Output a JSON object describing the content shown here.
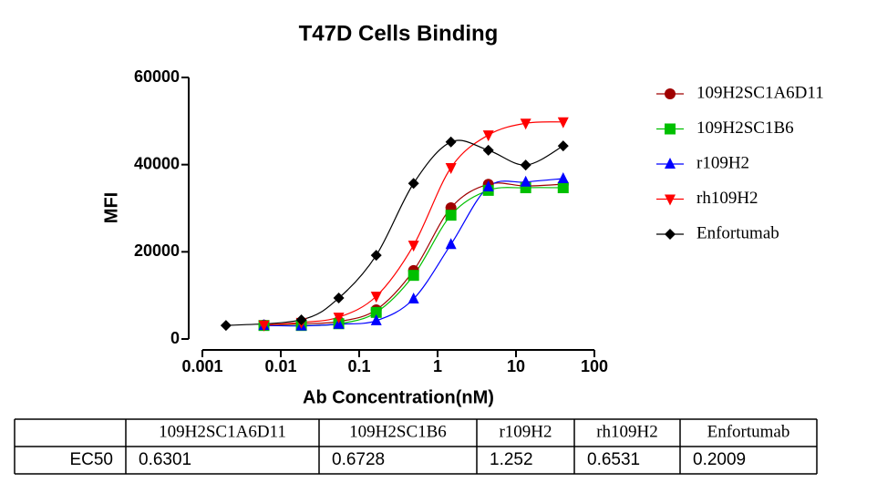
{
  "chart_data": {
    "type": "scatter",
    "title": "T47D  Cells Binding",
    "xlabel": "Ab Concentration(nM)",
    "ylabel": "MFI",
    "xscale": "log",
    "xlim": [
      0.001,
      100
    ],
    "xticks": [
      0.001,
      0.01,
      0.1,
      1,
      10,
      100
    ],
    "ylim": [
      0,
      60000
    ],
    "yticks": [
      0,
      20000,
      40000,
      60000
    ],
    "legend": "right",
    "series": [
      {
        "name": "109H2SC1A6D11",
        "color": "#a00000",
        "marker": "circle",
        "x": [
          0.0061,
          0.0183,
          0.0549,
          0.165,
          0.494,
          1.48,
          4.44,
          13.3,
          40
        ],
        "values": [
          3200,
          3500,
          4000,
          6700,
          15700,
          30100,
          35500,
          35100,
          35500
        ]
      },
      {
        "name": "109H2SC1B6",
        "color": "#00c000",
        "marker": "square",
        "x": [
          0.0061,
          0.0183,
          0.0549,
          0.165,
          0.494,
          1.48,
          4.44,
          13.3,
          40
        ],
        "values": [
          3100,
          3100,
          3500,
          6100,
          14600,
          28400,
          34100,
          34700,
          34700
        ]
      },
      {
        "name": "r109H2",
        "color": "#0000ff",
        "marker": "triangle-up",
        "x": [
          0.0061,
          0.0183,
          0.0549,
          0.165,
          0.494,
          1.48,
          4.44,
          13.3,
          40
        ],
        "values": [
          3100,
          3000,
          3400,
          4200,
          9200,
          21700,
          34900,
          36000,
          36800
        ]
      },
      {
        "name": "rh109H2",
        "color": "#ff0000",
        "marker": "triangle-down",
        "x": [
          0.0061,
          0.0183,
          0.0549,
          0.165,
          0.494,
          1.48,
          4.44,
          13.3,
          40
        ],
        "values": [
          3200,
          3800,
          5000,
          9800,
          21500,
          39300,
          46800,
          49500,
          49800
        ]
      },
      {
        "name": "Enfortumab",
        "color": "#000000",
        "marker": "diamond",
        "x": [
          0.002,
          0.0183,
          0.0549,
          0.165,
          0.494,
          1.48,
          4.44,
          13.3,
          40
        ],
        "values": [
          3100,
          4400,
          9400,
          19200,
          35700,
          45200,
          43300,
          39900,
          44300
        ]
      }
    ]
  },
  "table": {
    "header": [
      "109H2SC1A6D11",
      "109H2SC1B6",
      "r109H2",
      "rh109H2",
      "Enfortumab"
    ],
    "rows": [
      [
        "EC50",
        0.6301,
        0.6728,
        1.252,
        0.6531,
        0.2009
      ]
    ]
  }
}
